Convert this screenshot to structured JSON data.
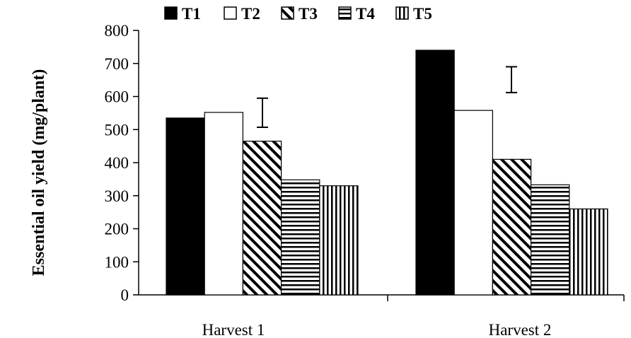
{
  "chart_data": {
    "type": "bar",
    "title": "",
    "ylabel": "Essential oil yield (mg/plant)",
    "xlabel": "",
    "categories": [
      "Harvest 1",
      "Harvest 2"
    ],
    "ylim": [
      0,
      800
    ],
    "yticks": [
      0,
      100,
      200,
      300,
      400,
      500,
      600,
      700,
      800
    ],
    "grid": false,
    "legend_position": "top",
    "series": [
      {
        "name": "T1",
        "pattern": "solid",
        "values": [
          535,
          740
        ]
      },
      {
        "name": "T2",
        "pattern": "empty",
        "values": [
          552,
          558
        ]
      },
      {
        "name": "T3",
        "pattern": "diagonal",
        "values": [
          465,
          410
        ]
      },
      {
        "name": "T4",
        "pattern": "horizontal",
        "values": [
          348,
          333
        ]
      },
      {
        "name": "T5",
        "pattern": "vertical",
        "values": [
          330,
          260
        ]
      }
    ],
    "error_bars": [
      {
        "category": "Harvest 1",
        "low": 507,
        "high": 595
      },
      {
        "category": "Harvest 2",
        "low": 612,
        "high": 690
      }
    ],
    "colors": {
      "ink": "#000000",
      "background": "#ffffff"
    }
  }
}
